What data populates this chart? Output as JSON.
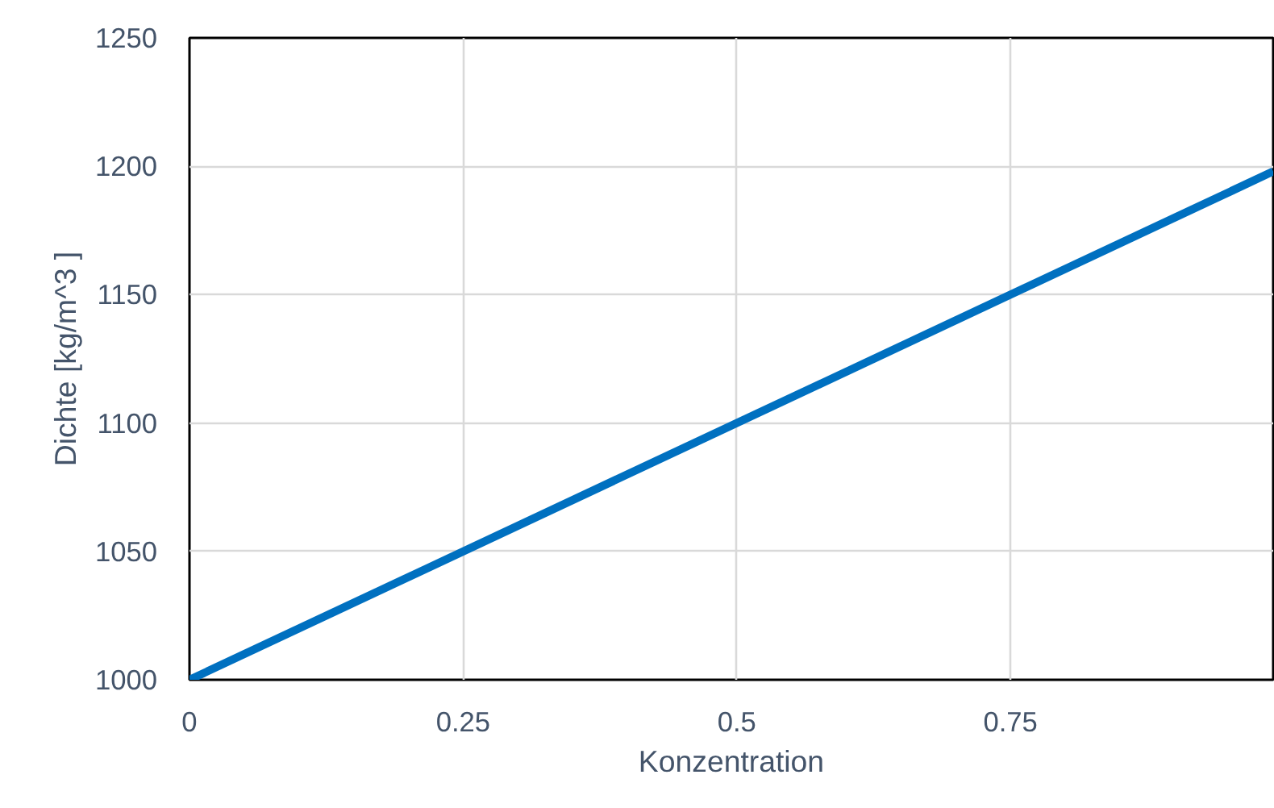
{
  "chart_data": {
    "type": "line",
    "xlabel": "Konzentration",
    "ylabel": "Dichte [kg/m^3 ]",
    "x": [
      0,
      0.99
    ],
    "series": [
      {
        "color": "#0070c0",
        "values": [
          1000,
          1198
        ]
      }
    ],
    "xlim": [
      0,
      0.99
    ],
    "xticks": [
      0,
      0.25,
      0.5,
      0.75
    ],
    "ylim": [
      1000,
      1250
    ],
    "yticks": [
      1000,
      1050,
      1100,
      1150,
      1200,
      1250
    ],
    "grid": true,
    "marker": "none",
    "line_style": "solid"
  }
}
